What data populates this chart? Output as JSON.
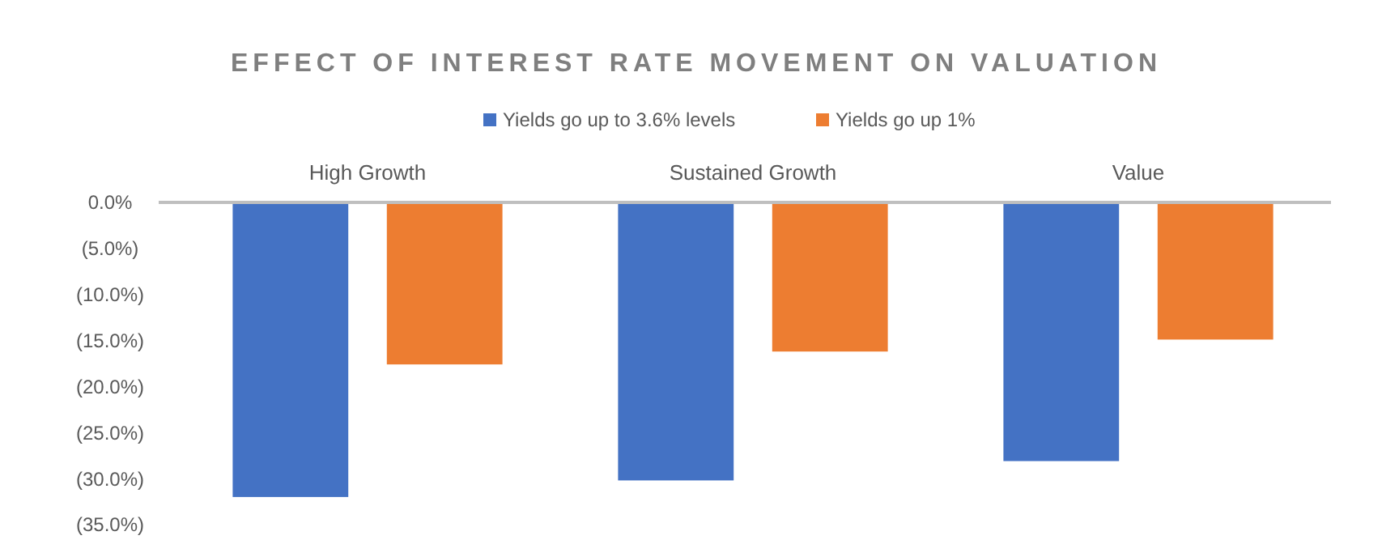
{
  "chart_data": {
    "type": "bar",
    "title": "EFFECT OF INTEREST RATE MOVEMENT  ON VALUATION",
    "categories": [
      "High Growth",
      "Sustained Growth",
      "Value"
    ],
    "series": [
      {
        "name": "Yields go up to 3.6% levels",
        "color": "#4472c4",
        "values": [
          -32.0,
          -30.2,
          -28.1
        ]
      },
      {
        "name": "Yields go up 1%",
        "color": "#ed7d31",
        "values": [
          -17.6,
          -16.2,
          -14.9
        ]
      }
    ],
    "ylim": [
      -35,
      0
    ],
    "yticks": [
      {
        "value": 0,
        "label": "0.0%"
      },
      {
        "value": -5,
        "label": "(5.0%)"
      },
      {
        "value": -10,
        "label": "(10.0%)"
      },
      {
        "value": -15,
        "label": "(15.0%)"
      },
      {
        "value": -20,
        "label": "(20.0%)"
      },
      {
        "value": -25,
        "label": "(25.0%)"
      },
      {
        "value": -30,
        "label": "(30.0%)"
      },
      {
        "value": -35,
        "label": "(35.0%)"
      }
    ],
    "grid": false,
    "legend": "top"
  }
}
